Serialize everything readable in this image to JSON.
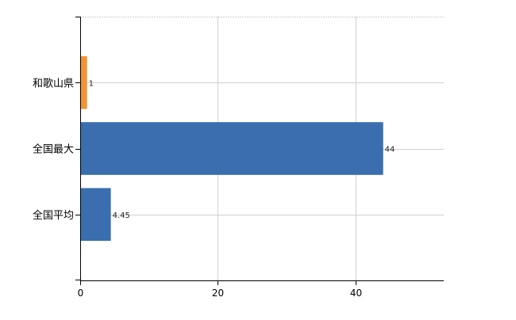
{
  "chart_data": {
    "type": "bar",
    "orientation": "horizontal",
    "categories": [
      "和歌山県",
      "全国最大",
      "全国平均"
    ],
    "values": [
      1,
      44,
      4.45
    ],
    "value_labels": [
      "1",
      "44",
      "4.45"
    ],
    "colors": [
      "#f39237",
      "#3a6eae",
      "#3a6eae"
    ],
    "title": "",
    "xlabel": "",
    "ylabel": "",
    "xlim": [
      0,
      52.8
    ],
    "xticks": [
      0,
      20,
      40
    ],
    "grid": true,
    "legend": "none"
  }
}
